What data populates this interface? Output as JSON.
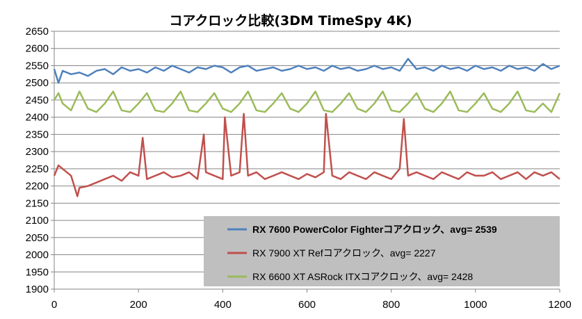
{
  "chart_data": {
    "type": "line",
    "title": "コアクロック比較(3DM TimeSpy 4K)",
    "xlabel": "",
    "ylabel": "",
    "xlim": [
      0,
      1200
    ],
    "ylim": [
      1900,
      2650
    ],
    "x_ticks": [
      "0",
      "200",
      "400",
      "600",
      "800",
      "1000",
      "1200"
    ],
    "y_ticks": [
      "2650",
      "2600",
      "2550",
      "2500",
      "2450",
      "2400",
      "2350",
      "2300",
      "2250",
      "2200",
      "2150",
      "2100",
      "2050",
      "2000",
      "1950",
      "1900"
    ],
    "grid": "horizontal",
    "legend_position": "bottom-right",
    "series": [
      {
        "name": "RX 7600 PowerColor Fighterコアクロック、avg= 2539",
        "color": "#4f81bd",
        "bold_legend": true,
        "x": [
          0,
          10,
          20,
          40,
          60,
          80,
          100,
          120,
          140,
          160,
          180,
          200,
          220,
          240,
          260,
          280,
          300,
          320,
          340,
          360,
          380,
          400,
          420,
          440,
          460,
          480,
          500,
          520,
          540,
          560,
          580,
          600,
          620,
          640,
          660,
          680,
          700,
          720,
          740,
          760,
          780,
          800,
          820,
          840,
          860,
          880,
          900,
          920,
          940,
          960,
          980,
          1000,
          1020,
          1040,
          1060,
          1080,
          1100,
          1120,
          1140,
          1160,
          1180,
          1200
        ],
        "values": [
          2540,
          2500,
          2535,
          2525,
          2530,
          2520,
          2535,
          2540,
          2525,
          2545,
          2535,
          2540,
          2530,
          2545,
          2535,
          2550,
          2540,
          2530,
          2545,
          2540,
          2550,
          2545,
          2530,
          2545,
          2550,
          2535,
          2540,
          2545,
          2535,
          2540,
          2550,
          2540,
          2545,
          2535,
          2550,
          2540,
          2545,
          2535,
          2540,
          2550,
          2540,
          2545,
          2535,
          2570,
          2540,
          2545,
          2535,
          2550,
          2540,
          2545,
          2535,
          2550,
          2540,
          2545,
          2535,
          2550,
          2540,
          2545,
          2535,
          2555,
          2540,
          2550
        ]
      },
      {
        "name": "RX 7900 XT Refコアクロック、avg= 2227",
        "color": "#c0504d",
        "bold_legend": false,
        "x": [
          0,
          10,
          20,
          40,
          55,
          60,
          80,
          100,
          120,
          140,
          160,
          180,
          200,
          210,
          220,
          240,
          260,
          280,
          300,
          320,
          340,
          355,
          360,
          380,
          400,
          405,
          420,
          440,
          450,
          460,
          480,
          500,
          520,
          540,
          560,
          580,
          600,
          620,
          640,
          645,
          660,
          680,
          700,
          720,
          740,
          760,
          780,
          800,
          820,
          830,
          840,
          860,
          880,
          900,
          920,
          940,
          960,
          980,
          1000,
          1020,
          1040,
          1060,
          1080,
          1100,
          1120,
          1140,
          1160,
          1180,
          1200
        ],
        "values": [
          2230,
          2260,
          2250,
          2230,
          2170,
          2195,
          2200,
          2210,
          2220,
          2230,
          2215,
          2240,
          2230,
          2340,
          2220,
          2230,
          2240,
          2225,
          2230,
          2240,
          2220,
          2350,
          2240,
          2230,
          2220,
          2400,
          2230,
          2240,
          2410,
          2230,
          2240,
          2220,
          2230,
          2240,
          2230,
          2220,
          2235,
          2225,
          2240,
          2410,
          2230,
          2220,
          2240,
          2230,
          2220,
          2240,
          2230,
          2220,
          2250,
          2395,
          2230,
          2240,
          2230,
          2220,
          2240,
          2230,
          2220,
          2240,
          2230,
          2230,
          2240,
          2220,
          2230,
          2240,
          2220,
          2240,
          2230,
          2240,
          2220
        ]
      },
      {
        "name": "RX 6600 XT ASRock ITXコアクロック、avg= 2428",
        "color": "#9bbb59",
        "bold_legend": false,
        "x": [
          0,
          10,
          20,
          40,
          60,
          80,
          100,
          120,
          140,
          160,
          180,
          200,
          220,
          240,
          260,
          280,
          300,
          320,
          340,
          360,
          380,
          400,
          420,
          440,
          460,
          480,
          500,
          520,
          540,
          560,
          580,
          600,
          620,
          640,
          660,
          680,
          700,
          720,
          740,
          760,
          780,
          800,
          820,
          840,
          860,
          880,
          900,
          920,
          940,
          960,
          980,
          1000,
          1020,
          1040,
          1060,
          1080,
          1100,
          1120,
          1140,
          1160,
          1180,
          1200
        ],
        "values": [
          2450,
          2470,
          2440,
          2420,
          2475,
          2425,
          2415,
          2440,
          2475,
          2420,
          2415,
          2440,
          2470,
          2420,
          2415,
          2440,
          2475,
          2420,
          2415,
          2440,
          2470,
          2425,
          2415,
          2440,
          2475,
          2420,
          2415,
          2440,
          2470,
          2425,
          2415,
          2440,
          2475,
          2420,
          2415,
          2440,
          2470,
          2425,
          2415,
          2440,
          2475,
          2420,
          2415,
          2440,
          2470,
          2425,
          2415,
          2440,
          2475,
          2420,
          2415,
          2440,
          2470,
          2425,
          2415,
          2440,
          2475,
          2420,
          2415,
          2440,
          2415,
          2470
        ]
      }
    ]
  }
}
